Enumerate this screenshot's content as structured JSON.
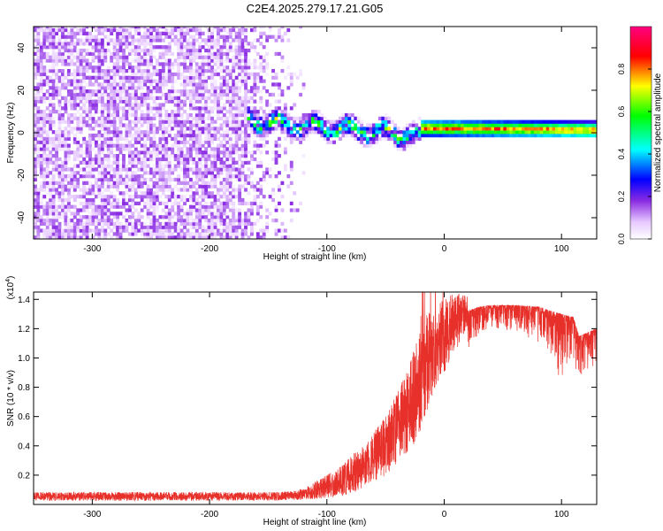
{
  "title": "C2E4.2025.279.17.21.G05",
  "chart_data": [
    {
      "type": "heatmap",
      "title": "C2E4.2025.279.17.21.G05",
      "xlabel": "Height of straight line (km)",
      "ylabel": "Frequency (Hz)",
      "xlim": [
        -350,
        130
      ],
      "ylim": [
        -50,
        50
      ],
      "x_ticks": [
        -300,
        -200,
        -100,
        0,
        100
      ],
      "y_ticks": [
        -40,
        -20,
        0,
        20,
        40
      ],
      "colorbar": {
        "label": "Normalized spectral amplitude",
        "range": [
          0,
          1
        ],
        "ticks": [
          0.0,
          0.2,
          0.4,
          0.6,
          0.8
        ],
        "colormap": [
          "#ffffff",
          "#8a2be2",
          "#0000ff",
          "#00ffff",
          "#00ff00",
          "#ffff00",
          "#ff0000",
          "#ff0080"
        ]
      },
      "regions": [
        {
          "name": "noise",
          "x_range": [
            -350,
            -120
          ],
          "freq_range": [
            -50,
            50
          ],
          "amplitude": 0.1
        },
        {
          "name": "transition",
          "x_range": [
            -170,
            -20
          ],
          "freq_center": [
            5,
            -2
          ],
          "spread_hz": 6,
          "amplitude": 0.5
        },
        {
          "name": "tone",
          "x_range": [
            -20,
            130
          ],
          "freq_center": [
            1.5,
            0.5
          ],
          "spread_hz": 2,
          "amplitude": 0.85
        }
      ]
    },
    {
      "type": "line",
      "xlabel": "Height of straight line (km)",
      "ylabel": "SNR (10 * v/v)",
      "scale_label": "(x10",
      "scale_exponent": "4",
      "xlim": [
        -350,
        130
      ],
      "ylim": [
        0,
        1.45
      ],
      "x_ticks": [
        -300,
        -200,
        -100,
        0,
        100
      ],
      "y_ticks": [
        0.2,
        0.4,
        0.6,
        0.8,
        1.0,
        1.2,
        1.4
      ],
      "color": "#e8302a",
      "series": [
        {
          "name": "SNR",
          "x": [
            -350,
            -250,
            -150,
            -120,
            -90,
            -70,
            -50,
            -30,
            -20,
            -10,
            0,
            10,
            20,
            30,
            40,
            60,
            80,
            100,
            110,
            115,
            130
          ],
          "values": [
            0.05,
            0.05,
            0.05,
            0.07,
            0.15,
            0.25,
            0.4,
            0.65,
            0.9,
            1.05,
            1.15,
            1.25,
            1.32,
            1.35,
            1.36,
            1.36,
            1.35,
            1.3,
            1.28,
            1.15,
            1.2
          ],
          "noise": [
            0.02,
            0.02,
            0.02,
            0.04,
            0.1,
            0.15,
            0.2,
            0.3,
            0.4,
            0.3,
            0.25,
            0.2,
            0.1,
            0.06,
            0.05,
            0.06,
            0.08,
            0.15,
            0.1,
            0.1,
            0.08
          ]
        }
      ]
    }
  ]
}
